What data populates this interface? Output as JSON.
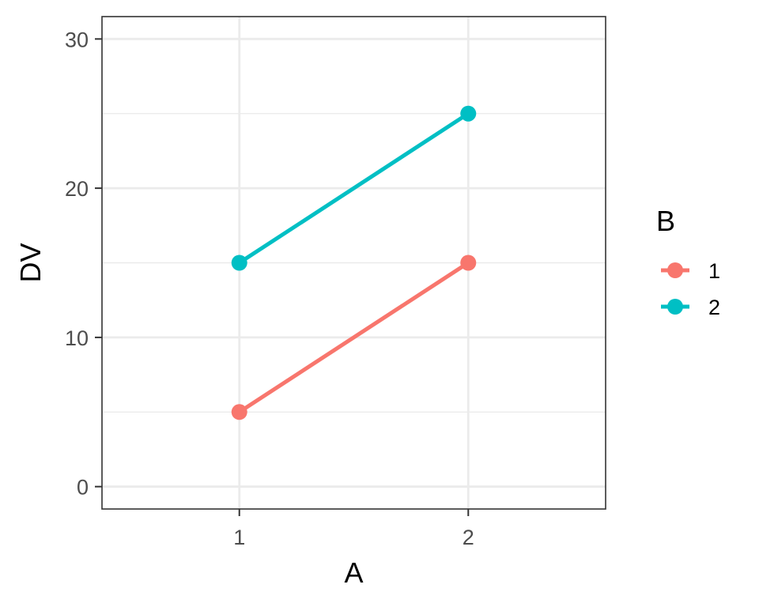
{
  "chart_data": {
    "type": "line",
    "x": [
      1,
      2
    ],
    "xlabel": "A",
    "ylabel": "DV",
    "xlim": [
      0.4,
      2.6
    ],
    "ylim": [
      -1.5,
      31.5
    ],
    "xticks": [
      "1",
      "2"
    ],
    "yticks": [
      "0",
      "10",
      "20",
      "30"
    ],
    "grid": true,
    "legend": {
      "title": "B",
      "placement": "right",
      "entries": [
        "1",
        "2"
      ]
    },
    "series": [
      {
        "name": "1",
        "color": "#F8766D",
        "values": [
          5,
          15
        ]
      },
      {
        "name": "2",
        "color": "#00BFC4",
        "values": [
          15,
          25
        ]
      }
    ]
  }
}
